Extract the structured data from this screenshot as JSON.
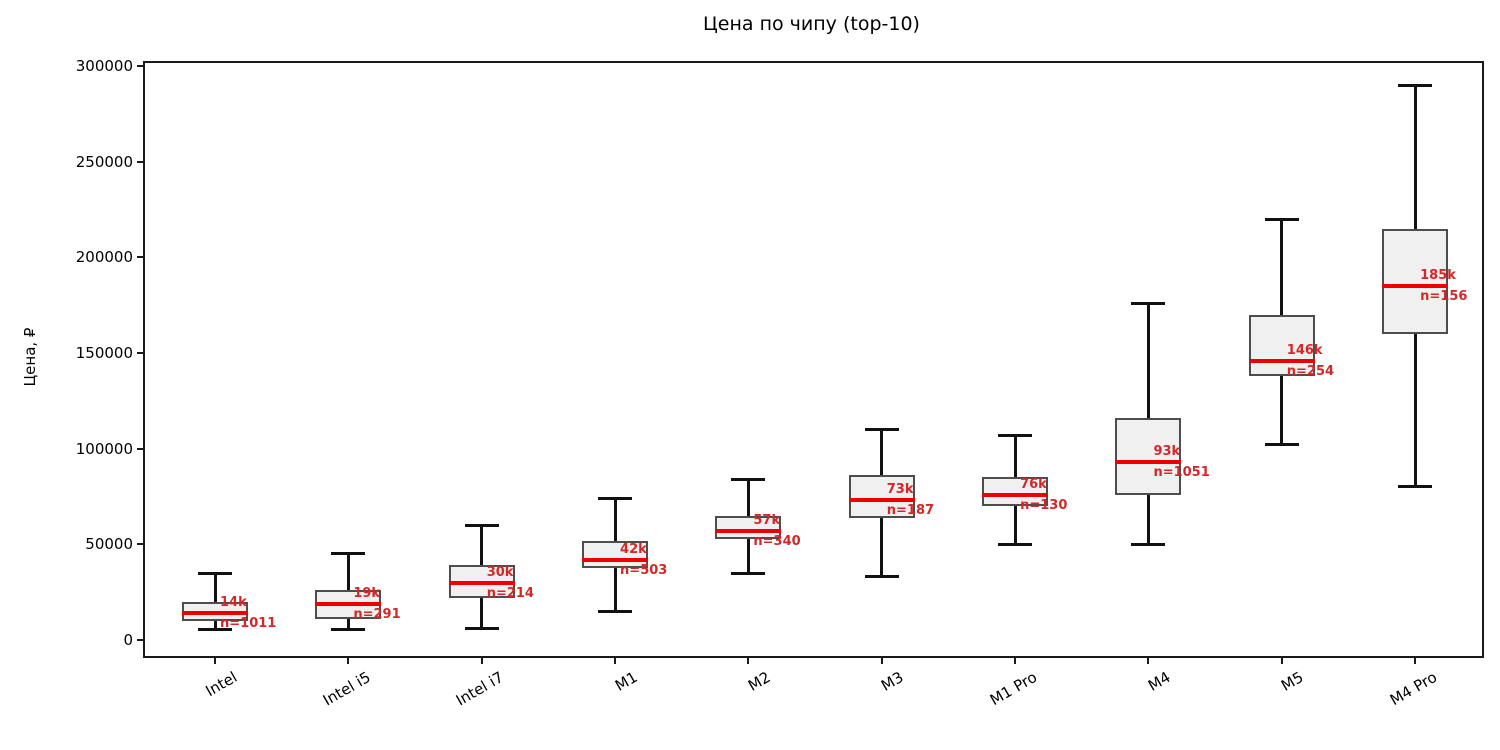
{
  "chart_data": {
    "type": "boxplot",
    "title": "Цена по чипу (top-10)",
    "ylabel": "Цена, ₽",
    "xlabel": "",
    "ylim": [
      0,
      300000
    ],
    "y_ticks": [
      0,
      50000,
      100000,
      150000,
      200000,
      250000,
      300000
    ],
    "grid": false,
    "legend": "none",
    "x_tick_rotation_deg": 30,
    "categories": [
      "Intel",
      "Intel i5",
      "Intel i7",
      "M1",
      "M2",
      "M3",
      "M1 Pro",
      "M4",
      "M5",
      "M4 Pro"
    ],
    "series": [
      {
        "label": "Intel",
        "n": 1011,
        "median": 14000,
        "median_label": "14k",
        "n_label": "n=1011",
        "q1": 10000,
        "q3": 20000,
        "whisker_low": 5500,
        "whisker_high": 35000
      },
      {
        "label": "Intel i5",
        "n": 291,
        "median": 19000,
        "median_label": "19k",
        "n_label": "n=291",
        "q1": 11000,
        "q3": 26000,
        "whisker_low": 5500,
        "whisker_high": 45000
      },
      {
        "label": "Intel i7",
        "n": 214,
        "median": 30000,
        "median_label": "30k",
        "n_label": "n=214",
        "q1": 22000,
        "q3": 39000,
        "whisker_low": 6000,
        "whisker_high": 60000
      },
      {
        "label": "M1",
        "n": 503,
        "median": 42000,
        "median_label": "42k",
        "n_label": "n=503",
        "q1": 37500,
        "q3": 52000,
        "whisker_low": 15000,
        "whisker_high": 74000
      },
      {
        "label": "M2",
        "n": 340,
        "median": 57000,
        "median_label": "57k",
        "n_label": "n=340",
        "q1": 53000,
        "q3": 65000,
        "whisker_low": 35000,
        "whisker_high": 84000
      },
      {
        "label": "M3",
        "n": 187,
        "median": 73000,
        "median_label": "73k",
        "n_label": "n=187",
        "q1": 64000,
        "q3": 86000,
        "whisker_low": 33000,
        "whisker_high": 110000
      },
      {
        "label": "M1 Pro",
        "n": 130,
        "median": 76000,
        "median_label": "76k",
        "n_label": "n=130",
        "q1": 70000,
        "q3": 85000,
        "whisker_low": 50000,
        "whisker_high": 107000
      },
      {
        "label": "M4",
        "n": 1051,
        "median": 93000,
        "median_label": "93k",
        "n_label": "n=1051",
        "q1": 76000,
        "q3": 116000,
        "whisker_low": 50000,
        "whisker_high": 176000
      },
      {
        "label": "M5",
        "n": 254,
        "median": 146000,
        "median_label": "146k",
        "n_label": "n=254",
        "q1": 138000,
        "q3": 170000,
        "whisker_low": 102000,
        "whisker_high": 220000
      },
      {
        "label": "M4 Pro",
        "n": 156,
        "median": 185000,
        "median_label": "185k",
        "n_label": "n=156",
        "q1": 160000,
        "q3": 215000,
        "whisker_low": 80000,
        "whisker_high": 290000
      }
    ],
    "colors": {
      "median_line": "#ee0000",
      "label_text": "#d62728",
      "box_fill": "#f0f0f0",
      "box_edge": "#4d4d4d",
      "whisker": "#111111",
      "axis": "#1a1a1a",
      "background": "#ffffff"
    }
  }
}
